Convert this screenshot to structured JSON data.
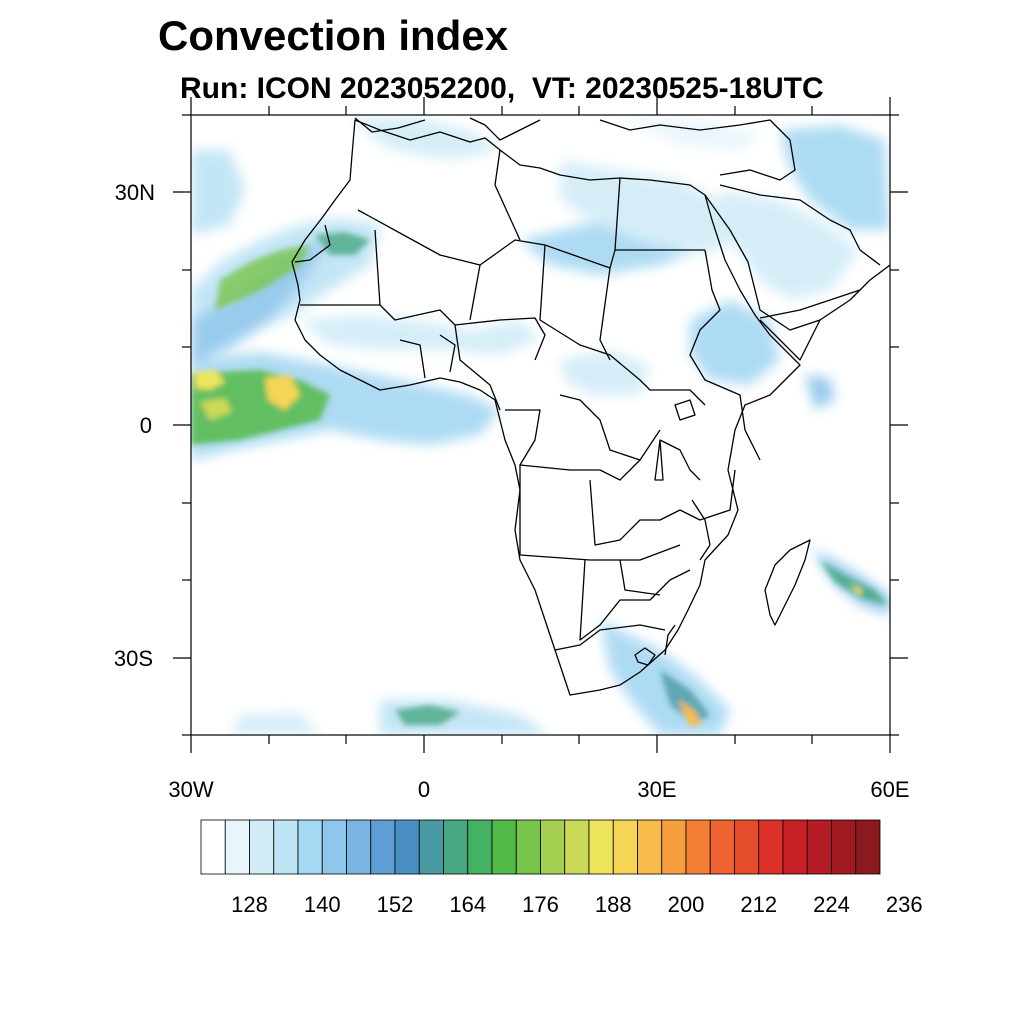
{
  "header": {
    "title": "Convection index",
    "subtitle": "Run: ICON 2023052200,  VT: 20230525-18UTC"
  },
  "map": {
    "lon_range": [
      -30,
      60
    ],
    "lat_range": [
      -40,
      40
    ],
    "lat_labels": [
      "30N",
      "0",
      "30S"
    ],
    "lon_labels": [
      "30W",
      "0",
      "30E",
      "60E"
    ]
  },
  "colorbar": {
    "colors": [
      "#ffffff",
      "#e8f5fc",
      "#d2ecf8",
      "#bde3f5",
      "#a5d8f2",
      "#8fc6ec",
      "#79b4e2",
      "#5f9ed5",
      "#4a8fc4",
      "#4a9aa3",
      "#48a883",
      "#45b163",
      "#53ba48",
      "#78c44a",
      "#a5cf50",
      "#cad957",
      "#ece55c",
      "#f6d455",
      "#f8bb4a",
      "#f79e3e",
      "#f37f34",
      "#ee6430",
      "#e64b2c",
      "#dd3029",
      "#c92027",
      "#b51b24",
      "#a01a20",
      "#8a1a1e"
    ],
    "tick_labels": [
      "128",
      "140",
      "152",
      "164",
      "176",
      "188",
      "200",
      "212",
      "224",
      "236"
    ]
  }
}
